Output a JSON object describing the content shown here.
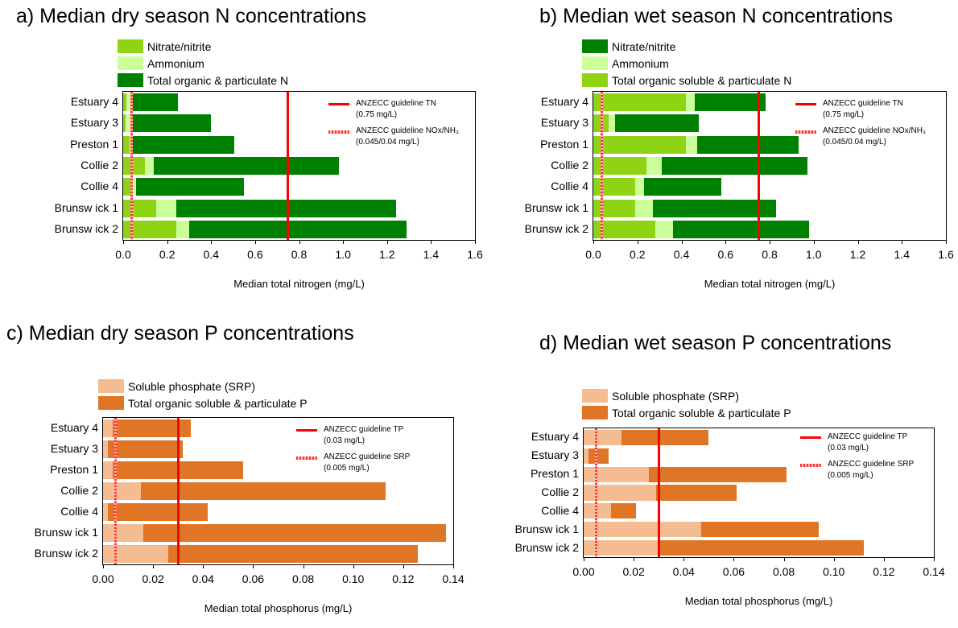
{
  "colors": {
    "nitrate": "#8ed415",
    "ammonium": "#ccff99",
    "organic_n": "#008000",
    "srp": "#f5bc91",
    "organic_p": "#e07525",
    "guideline": "#ff0000"
  },
  "panels": [
    {
      "id": "a",
      "title": "a)   Median dry season N concentrations",
      "xlabel": "Median total nitrogen (mg/L)",
      "legend": [
        {
          "label": "Nitrate/nitrite",
          "color_key": "nitrate"
        },
        {
          "label": "Ammonium",
          "color_key": "ammonium"
        },
        {
          "label": "Total organic & particulate N",
          "color_key": "organic_n"
        }
      ],
      "guideline_legend": [
        {
          "style": "solid",
          "text": "ANZECC guideline TN",
          "sub": "(0.75 mg/L)"
        },
        {
          "style": "dash",
          "text": "ANZECC guideline NOx/NH₃",
          "sub": "(0.045/0.04 mg/L)"
        }
      ],
      "chart_data": {
        "type": "bar",
        "orientation": "horizontal",
        "stacked": true,
        "xlim": [
          0,
          1.6
        ],
        "xticks": [
          "0.0",
          "0.2",
          "0.4",
          "0.6",
          "0.8",
          "1.0",
          "1.2",
          "1.4",
          "1.6"
        ],
        "xtick_values": [
          0,
          0.2,
          0.4,
          0.6,
          0.8,
          1.0,
          1.2,
          1.4,
          1.6
        ],
        "categories": [
          "Estuary 4",
          "Estuary 3",
          "Preston 1",
          "Collie 2",
          "Collie 4",
          "Brunsw ick 1",
          "Brunsw ick 2"
        ],
        "series": [
          {
            "name": "Nitrate/nitrite",
            "color_key": "nitrate",
            "values": [
              0.015,
              0.01,
              0.03,
              0.1,
              0.04,
              0.15,
              0.24
            ]
          },
          {
            "name": "Ammonium",
            "color_key": "ammonium",
            "values": [
              0.02,
              0.03,
              0.01,
              0.04,
              0.02,
              0.09,
              0.06
            ]
          },
          {
            "name": "Total organic & particulate N",
            "color_key": "organic_n",
            "values": [
              0.215,
              0.36,
              0.465,
              0.84,
              0.49,
              1.0,
              0.99
            ]
          }
        ],
        "guidelines": [
          {
            "value": 0.75,
            "style": "solid"
          },
          {
            "value": 0.04,
            "style": "dash"
          }
        ]
      }
    },
    {
      "id": "b",
      "title": "b) Median wet season N concentrations",
      "xlabel": "Median total nitrogen (mg/L)",
      "legend": [
        {
          "label": "Nitrate/nitrite",
          "color_key": "organic_n"
        },
        {
          "label": "Ammonium",
          "color_key": "ammonium"
        },
        {
          "label": "Total organic soluble & particulate N",
          "color_key": "nitrate"
        }
      ],
      "guideline_legend": [
        {
          "style": "solid",
          "text": "ANZECC guideline TN",
          "sub": "(0.75 mg/L)"
        },
        {
          "style": "dash",
          "text": "ANZECC guideline NOx/NH₃",
          "sub": "(0.045/0.04 mg/L)"
        }
      ],
      "chart_data": {
        "type": "bar",
        "orientation": "horizontal",
        "stacked": true,
        "xlim": [
          0,
          1.6
        ],
        "xticks": [
          "0.0",
          "0.2",
          "0.4",
          "0.6",
          "0.8",
          "1.0",
          "1.2",
          "1.4",
          "1.6"
        ],
        "xtick_values": [
          0,
          0.2,
          0.4,
          0.6,
          0.8,
          1.0,
          1.2,
          1.4,
          1.6
        ],
        "categories": [
          "Estuary 4",
          "Estuary 3",
          "Preston 1",
          "Collie 2",
          "Collie 4",
          "Brunsw ick 1",
          "Brunsw ick 2"
        ],
        "series": [
          {
            "name": "Total organic soluble & particulate N",
            "color_key": "nitrate",
            "values": [
              0.42,
              0.07,
              0.42,
              0.24,
              0.19,
              0.19,
              0.28
            ]
          },
          {
            "name": "Ammonium",
            "color_key": "ammonium",
            "values": [
              0.04,
              0.03,
              0.05,
              0.07,
              0.04,
              0.08,
              0.08
            ]
          },
          {
            "name": "Nitrate/nitrite",
            "color_key": "organic_n",
            "values": [
              0.32,
              0.38,
              0.46,
              0.66,
              0.35,
              0.56,
              0.62
            ]
          }
        ],
        "guidelines": [
          {
            "value": 0.75,
            "style": "solid"
          },
          {
            "value": 0.04,
            "style": "dash"
          }
        ]
      }
    },
    {
      "id": "c",
      "title": "c) Median dry season P concentrations",
      "xlabel": "Median total phosphorus (mg/L)",
      "legend": [
        {
          "label": "Soluble phosphate (SRP)",
          "color_key": "srp"
        },
        {
          "label": "Total organic soluble & particulate P",
          "color_key": "organic_p"
        }
      ],
      "guideline_legend": [
        {
          "style": "solid",
          "text": "ANZECC guideline TP",
          "sub": "(0.03 mg/L)"
        },
        {
          "style": "dash",
          "text": "ANZECC guideline SRP",
          "sub": "(0.005 mg/L)"
        }
      ],
      "chart_data": {
        "type": "bar",
        "orientation": "horizontal",
        "stacked": true,
        "xlim": [
          0,
          0.14
        ],
        "xticks": [
          "0.00",
          "0.02",
          "0.04",
          "0.06",
          "0.08",
          "0.10",
          "0.12",
          "0.14"
        ],
        "xtick_values": [
          0,
          0.02,
          0.04,
          0.06,
          0.08,
          0.1,
          0.12,
          0.14
        ],
        "categories": [
          "Estuary 4",
          "Estuary 3",
          "Preston 1",
          "Collie 2",
          "Collie 4",
          "Brunsw ick 1",
          "Brunsw ick 2"
        ],
        "series": [
          {
            "name": "Soluble phosphate (SRP)",
            "color_key": "srp",
            "values": [
              0.004,
              0.002,
              0.004,
              0.015,
              0.002,
              0.016,
              0.026
            ]
          },
          {
            "name": "Total organic soluble & particulate P",
            "color_key": "organic_p",
            "values": [
              0.031,
              0.03,
              0.052,
              0.098,
              0.04,
              0.121,
              0.1
            ]
          }
        ],
        "guidelines": [
          {
            "value": 0.03,
            "style": "solid"
          },
          {
            "value": 0.005,
            "style": "dash"
          }
        ]
      }
    },
    {
      "id": "d",
      "title": "d) Median wet season P concentrations",
      "xlabel": "Median total phosphorus (mg/L)",
      "legend": [
        {
          "label": "Soluble phosphate (SRP)",
          "color_key": "srp"
        },
        {
          "label": "Total organic soluble & particulate P",
          "color_key": "organic_p"
        }
      ],
      "guideline_legend": [
        {
          "style": "solid",
          "text": "ANZECC guideline TP",
          "sub": "(0.03 mg/L)"
        },
        {
          "style": "dash",
          "text": "ANZECC guideline SRP",
          "sub": "(0.005 mg/L)"
        }
      ],
      "chart_data": {
        "type": "bar",
        "orientation": "horizontal",
        "stacked": true,
        "xlim": [
          0,
          0.14
        ],
        "xticks": [
          "0.00",
          "0.02",
          "0.04",
          "0.06",
          "0.08",
          "0.10",
          "0.12",
          "0.14"
        ],
        "xtick_values": [
          0,
          0.02,
          0.04,
          0.06,
          0.08,
          0.1,
          0.12,
          0.14
        ],
        "categories": [
          "Estuary 4",
          "Estuary 3",
          "Preston 1",
          "Collie 2",
          "Collie 4",
          "Brunsw ick 1",
          "Brunsw ick 2"
        ],
        "series": [
          {
            "name": "Soluble phosphate (SRP)",
            "color_key": "srp",
            "values": [
              0.015,
              0.002,
              0.026,
              0.029,
              0.011,
              0.047,
              0.03
            ]
          },
          {
            "name": "Total organic soluble & particulate P",
            "color_key": "organic_p",
            "values": [
              0.035,
              0.008,
              0.055,
              0.032,
              0.01,
              0.047,
              0.082
            ]
          }
        ],
        "guidelines": [
          {
            "value": 0.03,
            "style": "solid"
          },
          {
            "value": 0.005,
            "style": "dash"
          }
        ]
      }
    }
  ]
}
